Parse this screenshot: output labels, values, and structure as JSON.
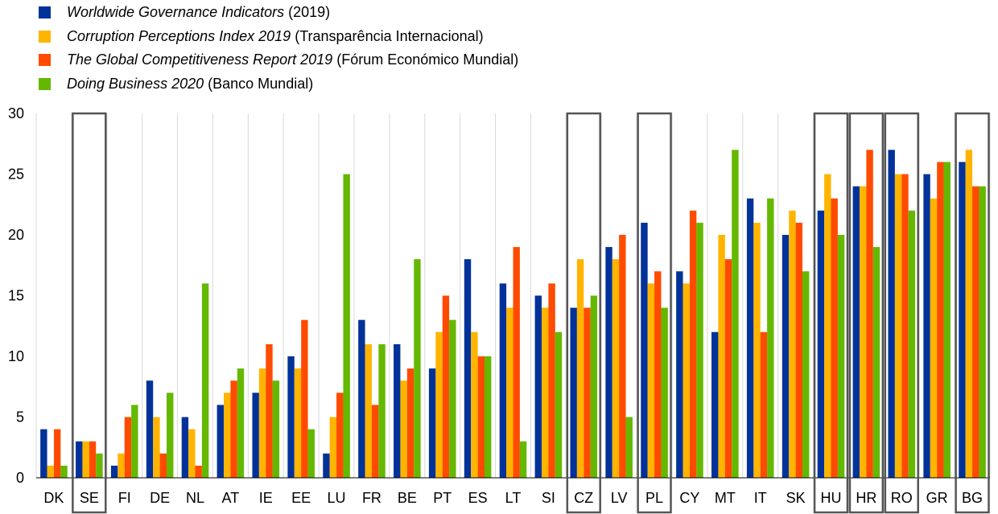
{
  "chart_data": {
    "type": "bar",
    "title": "",
    "xlabel": "",
    "ylabel": "",
    "ylim": [
      0,
      30
    ],
    "yticks": [
      0,
      5,
      10,
      15,
      20,
      25,
      30
    ],
    "grid": "vertical lines between categories",
    "legend_position": "top-left",
    "categories": [
      "DK",
      "SE",
      "FI",
      "DE",
      "NL",
      "AT",
      "IE",
      "EE",
      "LU",
      "FR",
      "BE",
      "PT",
      "ES",
      "LT",
      "SI",
      "CZ",
      "LV",
      "PL",
      "CY",
      "MT",
      "IT",
      "SK",
      "HU",
      "HR",
      "RO",
      "GR",
      "BG"
    ],
    "highlighted_categories": [
      "SE",
      "CZ",
      "PL",
      "HU",
      "HR",
      "RO",
      "BG"
    ],
    "series": [
      {
        "name": "Worldwide Governance Indicators",
        "source": "(2019)",
        "color": "#003299",
        "values": [
          4,
          3,
          1,
          8,
          5,
          6,
          7,
          10,
          2,
          13,
          11,
          9,
          18,
          16,
          15,
          14,
          19,
          21,
          17,
          12,
          23,
          20,
          22,
          24,
          27,
          25,
          26
        ]
      },
      {
        "name": "Corruption Perceptions Index 2019",
        "source": "(Transparência Internacional)",
        "color": "#FFB400",
        "values": [
          1,
          3,
          2,
          5,
          4,
          7,
          9,
          9,
          5,
          11,
          8,
          12,
          12,
          14,
          14,
          18,
          18,
          16,
          16,
          20,
          21,
          22,
          25,
          24,
          25,
          23,
          27
        ]
      },
      {
        "name": "The Global Competitiveness Report 2019",
        "source": "(Fórum Económico Mundial)",
        "color": "#FF4B00",
        "values": [
          4,
          3,
          5,
          2,
          1,
          8,
          11,
          13,
          7,
          6,
          9,
          15,
          10,
          19,
          16,
          14,
          20,
          17,
          22,
          18,
          12,
          21,
          23,
          27,
          25,
          26,
          24
        ]
      },
      {
        "name": "Doing Business 2020",
        "source": "(Banco Mundial)",
        "color": "#65B800",
        "values": [
          1,
          2,
          6,
          7,
          16,
          9,
          8,
          4,
          25,
          11,
          18,
          13,
          10,
          3,
          12,
          15,
          5,
          14,
          21,
          27,
          23,
          17,
          20,
          19,
          22,
          26,
          24
        ]
      }
    ]
  }
}
